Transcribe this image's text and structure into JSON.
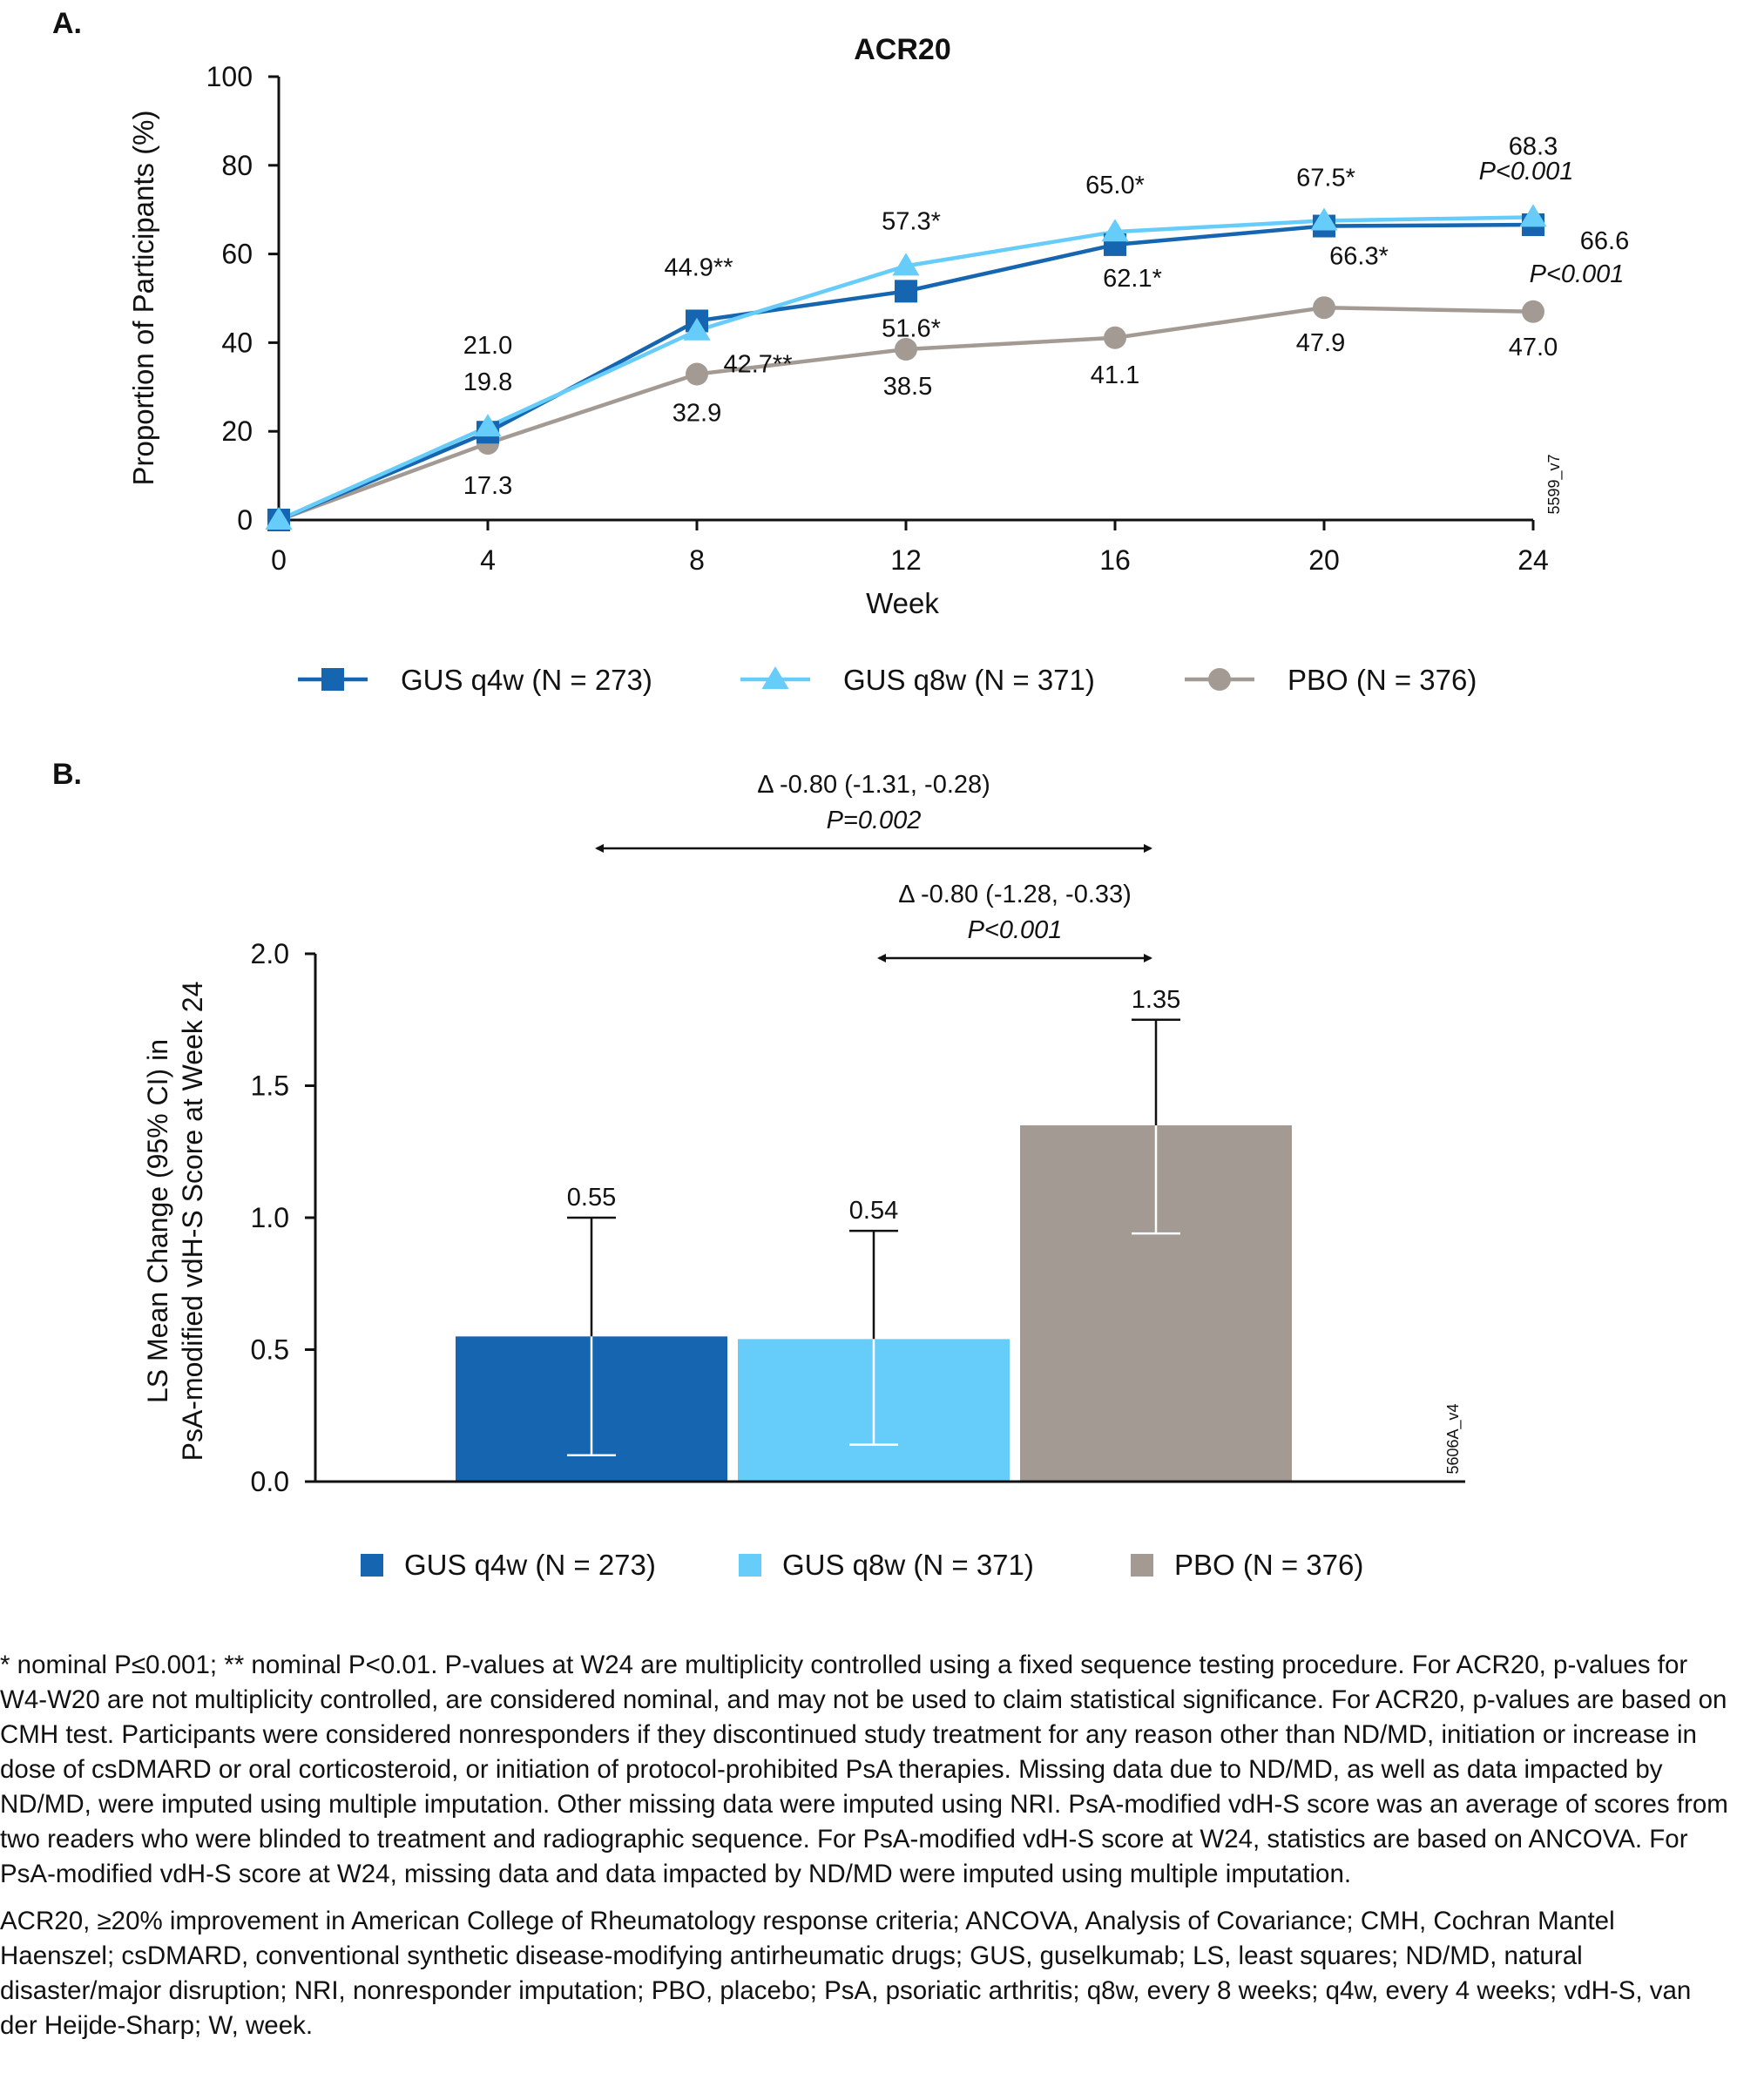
{
  "panel_a": {
    "label": "A."
  },
  "panel_b": {
    "label": "B."
  },
  "legend_items": [
    "GUS q4w (N = 273)",
    "GUS q8w (N = 371)",
    "PBO (N = 376)"
  ],
  "colors": {
    "gus_q4w": "#1565b0",
    "gus_q8w": "#66ccf9",
    "pbo": "#a39a94",
    "axis": "#111111"
  },
  "markers": {
    "gus_q4w": "square",
    "gus_q8w": "triangle",
    "pbo": "circle"
  },
  "chart_data": [
    {
      "type": "line",
      "title": "ACR20",
      "xlabel": "Week",
      "ylabel": "Proportion of Participants (%)",
      "x": [
        0,
        4,
        8,
        12,
        16,
        20,
        24
      ],
      "xlim": [
        0,
        24
      ],
      "ylim": [
        0,
        100
      ],
      "yticks": [
        0,
        20,
        40,
        60,
        80,
        100
      ],
      "grid": false,
      "legend_position": "bottom",
      "series": [
        {
          "name": "GUS q4w (N = 273)",
          "values": [
            0,
            19.8,
            44.9,
            51.6,
            62.1,
            66.3,
            66.6
          ],
          "labels": [
            "",
            "19.8",
            "44.9**",
            "51.6*",
            "62.1*",
            "66.3*",
            "66.6"
          ]
        },
        {
          "name": "GUS q8w (N = 371)",
          "values": [
            0,
            21.0,
            42.7,
            57.3,
            65.0,
            67.5,
            68.3
          ],
          "labels": [
            "",
            "21.0",
            "42.7**",
            "57.3*",
            "65.0*",
            "67.5*",
            "68.3"
          ]
        },
        {
          "name": "PBO (N = 376)",
          "values": [
            0,
            17.3,
            32.9,
            38.5,
            41.1,
            47.9,
            47.0
          ],
          "labels": [
            "",
            "17.3",
            "32.9",
            "38.5",
            "41.1",
            "47.9",
            "47.0"
          ]
        }
      ],
      "p_values": {
        "gus_q8w_w24": "P<0.001",
        "gus_q4w_w24": "P<0.001"
      },
      "annotation": "5599_v7"
    },
    {
      "type": "bar",
      "xlabel": "",
      "ylabel_lines": [
        "LS Mean Change (95% CI) in",
        "PsA-modified vdH-S Score at Week 24"
      ],
      "categories": [
        "GUS q4w (N = 273)",
        "GUS q8w (N = 371)",
        "PBO (N = 376)"
      ],
      "values": [
        0.55,
        0.54,
        1.35
      ],
      "value_labels": [
        "0.55",
        "0.54",
        "1.35"
      ],
      "ci": [
        [
          0.1,
          1.0
        ],
        [
          0.14,
          0.95
        ],
        [
          0.94,
          1.75
        ]
      ],
      "ylim": [
        0,
        2.0
      ],
      "yticks": [
        "0.0",
        "0.5",
        "1.0",
        "1.5",
        "2.0"
      ],
      "grid": false,
      "legend_position": "bottom",
      "comparisons": [
        {
          "from": "GUS q4w (N = 273)",
          "to": "PBO (N = 376)",
          "delta": "Δ -0.80 (-1.31, -0.28)",
          "p": "P=0.002"
        },
        {
          "from": "GUS q8w (N = 371)",
          "to": "PBO (N = 376)",
          "delta": "Δ -0.80 (-1.28, -0.33)",
          "p": "P<0.001"
        }
      ],
      "annotation": "5606A_v4"
    }
  ],
  "footnotes": {
    "para1": "* nominal P≤0.001; ** nominal P<0.01. P-values at W24 are multiplicity controlled using a fixed sequence testing procedure. For ACR20, p-values for W4-W20 are not multiplicity controlled, are considered nominal, and may not be used to claim statistical significance. For ACR20, p-values are based on CMH test. Participants were considered nonresponders if they discontinued study treatment for any reason other than ND/MD, initiation or increase in dose of csDMARD or oral corticosteroid, or initiation of protocol-prohibited PsA therapies. Missing data due to ND/MD, as well as data impacted by ND/MD, were imputed using multiple imputation. Other missing data were imputed using NRI. PsA-modified vdH-S score was an average of scores from two readers who were blinded to treatment and radiographic sequence. For PsA-modified vdH-S score at W24, statistics are based on ANCOVA. For PsA-modified vdH-S score at W24, missing data and data impacted by ND/MD were imputed using multiple imputation.",
    "para2": "ACR20, ≥20% improvement in American College of Rheumatology response criteria; ANCOVA, Analysis of Covariance; CMH, Cochran Mantel Haenszel; csDMARD, conventional synthetic disease-modifying antirheumatic drugs; GUS, guselkumab; LS, least squares; ND/MD, natural disaster/major disruption; NRI, nonresponder imputation; PBO, placebo; PsA, psoriatic arthritis; q8w, every 8 weeks; q4w, every 4 weeks; vdH-S, van der Heijde-Sharp; W, week."
  }
}
